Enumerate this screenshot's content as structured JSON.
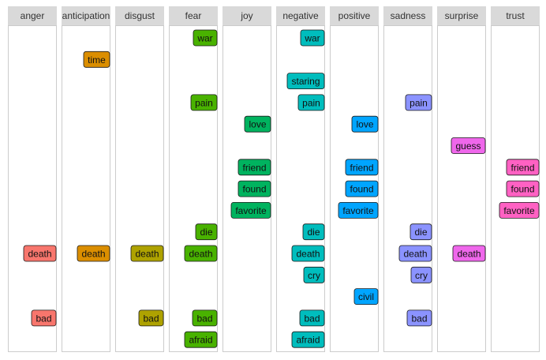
{
  "chart_data": {
    "type": "faceted-label-plot",
    "columns": [
      {
        "name": "anger",
        "color": "#f8766d"
      },
      {
        "name": "anticipation",
        "color": "#db8e00"
      },
      {
        "name": "disgust",
        "color": "#aea200"
      },
      {
        "name": "fear",
        "color": "#49b200"
      },
      {
        "name": "joy",
        "color": "#00b35f"
      },
      {
        "name": "negative",
        "color": "#00bdbd"
      },
      {
        "name": "positive",
        "color": "#00a5ff"
      },
      {
        "name": "sadness",
        "color": "#8b93ff"
      },
      {
        "name": "surprise",
        "color": "#ef67eb"
      },
      {
        "name": "trust",
        "color": "#ff61c3"
      }
    ],
    "words": [
      "war",
      "time",
      "staring",
      "pain",
      "love",
      "guess",
      "friend",
      "found",
      "favorite",
      "die",
      "death",
      "cry",
      "civil",
      "bad",
      "afraid"
    ],
    "points": [
      {
        "column": "anger",
        "word": "death"
      },
      {
        "column": "anger",
        "word": "bad"
      },
      {
        "column": "anticipation",
        "word": "time"
      },
      {
        "column": "anticipation",
        "word": "death"
      },
      {
        "column": "disgust",
        "word": "death"
      },
      {
        "column": "disgust",
        "word": "bad"
      },
      {
        "column": "fear",
        "word": "war"
      },
      {
        "column": "fear",
        "word": "pain"
      },
      {
        "column": "fear",
        "word": "die"
      },
      {
        "column": "fear",
        "word": "death"
      },
      {
        "column": "fear",
        "word": "bad"
      },
      {
        "column": "fear",
        "word": "afraid"
      },
      {
        "column": "joy",
        "word": "love"
      },
      {
        "column": "joy",
        "word": "friend"
      },
      {
        "column": "joy",
        "word": "found"
      },
      {
        "column": "joy",
        "word": "favorite"
      },
      {
        "column": "negative",
        "word": "war"
      },
      {
        "column": "negative",
        "word": "staring"
      },
      {
        "column": "negative",
        "word": "pain"
      },
      {
        "column": "negative",
        "word": "die"
      },
      {
        "column": "negative",
        "word": "death"
      },
      {
        "column": "negative",
        "word": "cry"
      },
      {
        "column": "negative",
        "word": "bad"
      },
      {
        "column": "negative",
        "word": "afraid"
      },
      {
        "column": "positive",
        "word": "love"
      },
      {
        "column": "positive",
        "word": "friend"
      },
      {
        "column": "positive",
        "word": "found"
      },
      {
        "column": "positive",
        "word": "favorite"
      },
      {
        "column": "positive",
        "word": "civil"
      },
      {
        "column": "sadness",
        "word": "pain"
      },
      {
        "column": "sadness",
        "word": "die"
      },
      {
        "column": "sadness",
        "word": "death"
      },
      {
        "column": "sadness",
        "word": "cry"
      },
      {
        "column": "sadness",
        "word": "bad"
      },
      {
        "column": "surprise",
        "word": "guess"
      },
      {
        "column": "surprise",
        "word": "death"
      },
      {
        "column": "trust",
        "word": "friend"
      },
      {
        "column": "trust",
        "word": "found"
      },
      {
        "column": "trust",
        "word": "favorite"
      }
    ],
    "strip_color": "#d9d9d9",
    "panel_border_color": "#cccccc",
    "label_border_color": "#1a1a1a"
  }
}
